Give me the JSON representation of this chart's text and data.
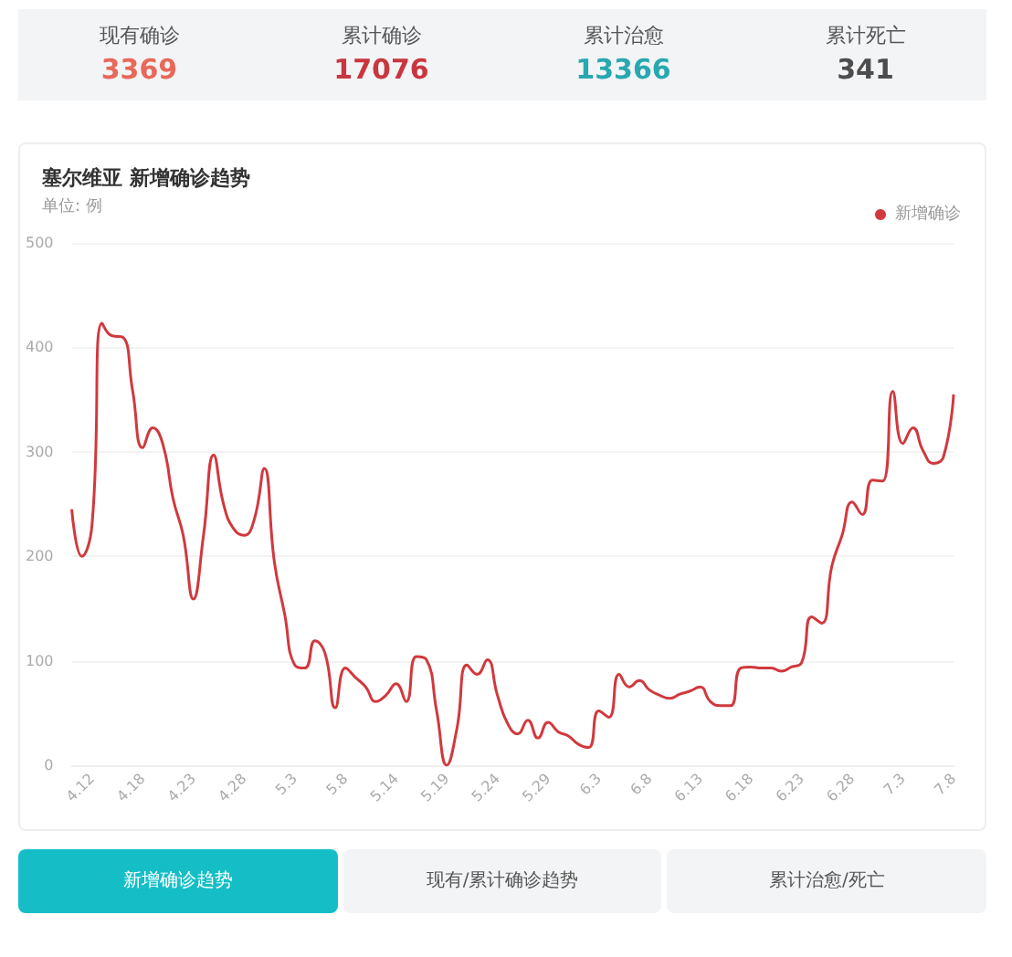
{
  "chart_data": [
    {
      "type": "other",
      "categories": [
        "现有确诊",
        "累计确诊",
        "累计治愈",
        "累计死亡"
      ],
      "values": [
        3369,
        17076,
        13366,
        341
      ],
      "data_labels": true
    },
    {
      "type": "line",
      "title": "塞尔维亚 新增确诊趋势",
      "subtitle": "单位: 例",
      "categories": [
        null,
        null,
        "4.12",
        null,
        null,
        null,
        null,
        "4.18",
        null,
        null,
        null,
        null,
        "4.23",
        null,
        null,
        null,
        null,
        "4.28",
        null,
        null,
        null,
        null,
        "5.3",
        null,
        null,
        null,
        null,
        "5.8",
        null,
        null,
        null,
        null,
        "5.14",
        null,
        null,
        null,
        null,
        "5.19",
        null,
        null,
        null,
        null,
        "5.24",
        null,
        null,
        null,
        null,
        "5.29",
        null,
        null,
        null,
        null,
        "6.3",
        null,
        null,
        null,
        null,
        "6.8",
        null,
        null,
        null,
        null,
        "6.13",
        null,
        null,
        null,
        null,
        "6.18",
        null,
        null,
        null,
        null,
        "6.23",
        null,
        null,
        null,
        null,
        "6.28",
        null,
        null,
        null,
        null,
        "7.3",
        null,
        null,
        null,
        null,
        "7.8"
      ],
      "series": [
        {
          "name": "新增确诊",
          "color": "#d0393e",
          "values": [
            245,
            200,
            230,
            423,
            411,
            410,
            359,
            304,
            323,
            307,
            255,
            220,
            159,
            220,
            297,
            249,
            226,
            220,
            235,
            284,
            194,
            145,
            96,
            93,
            119,
            107,
            55,
            93,
            84,
            75,
            61,
            67,
            78,
            61,
            104,
            101,
            52,
            0,
            35,
            96,
            87,
            101,
            67,
            40,
            30,
            43,
            26,
            41,
            32,
            28,
            20,
            17,
            52,
            46,
            87,
            75,
            81,
            72,
            67,
            64,
            68,
            71,
            75,
            61,
            57,
            57,
            93,
            94,
            93,
            93,
            90,
            94,
            98,
            142,
            136,
            191,
            220,
            252,
            240,
            273,
            272,
            358,
            308,
            323,
            301,
            289,
            295,
            355
          ]
        }
      ],
      "ylim": [
        0,
        500
      ],
      "yticks": [
        0,
        100,
        200,
        300,
        400,
        500
      ],
      "grid": "y",
      "legend": "top right",
      "marker": "none",
      "annotations": [
        "新增确诊趋势",
        "现有/累计确诊趋势",
        "累计治愈/死亡"
      ]
    }
  ]
}
